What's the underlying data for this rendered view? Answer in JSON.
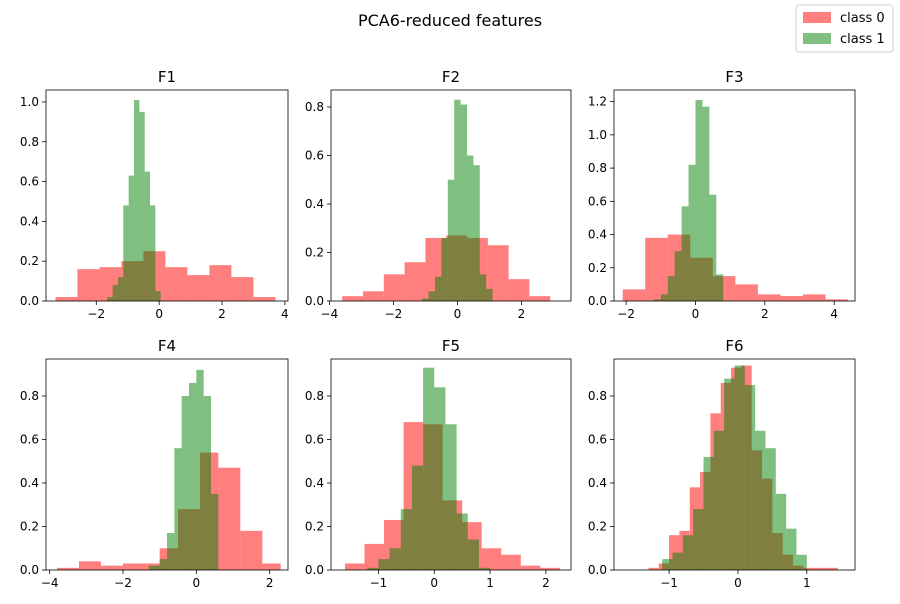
{
  "figure": {
    "title": "PCA6-reduced features",
    "legend": {
      "placement": "top-right",
      "items": [
        {
          "label": "class 0",
          "color": "#ff0000",
          "alpha": 0.5
        },
        {
          "label": "class 1",
          "color": "#008000",
          "alpha": 0.5
        }
      ]
    }
  },
  "chart_data": [
    {
      "type": "histogram",
      "title": "F1",
      "xlim": [
        -3.6,
        4.1
      ],
      "ylim": [
        0,
        1.06
      ],
      "xticks": [
        -2,
        0,
        2,
        4
      ],
      "xtick_labels": [
        "−2",
        "0",
        "2",
        "4"
      ],
      "yticks": [
        0,
        0.2,
        0.4,
        0.6,
        0.8,
        1.0
      ],
      "ytick_labels": [
        "0.0",
        "0.2",
        "0.4",
        "0.6",
        "0.8",
        "1.0"
      ],
      "series": [
        {
          "name": "class 0",
          "edges": [
            -3.3,
            -2.6,
            -1.9,
            -1.2,
            -0.5,
            0.2,
            0.9,
            1.6,
            2.3,
            3.0,
            3.7
          ],
          "values": [
            0.02,
            0.16,
            0.17,
            0.2,
            0.25,
            0.17,
            0.13,
            0.18,
            0.12,
            0.02
          ]
        },
        {
          "name": "class 1",
          "edges": [
            -1.65,
            -1.48,
            -1.31,
            -1.14,
            -0.97,
            -0.8,
            -0.63,
            -0.46,
            -0.29,
            -0.12,
            0.05
          ],
          "values": [
            0.02,
            0.08,
            0.12,
            0.48,
            0.63,
            1.01,
            0.95,
            0.65,
            0.48,
            0.05
          ]
        }
      ]
    },
    {
      "type": "histogram",
      "title": "F2",
      "xlim": [
        -3.95,
        3.55
      ],
      "ylim": [
        0,
        0.87
      ],
      "xticks": [
        -4,
        -2,
        0,
        2
      ],
      "xtick_labels": [
        "−4",
        "−2",
        "0",
        "2"
      ],
      "yticks": [
        0,
        0.2,
        0.4,
        0.6,
        0.8
      ],
      "ytick_labels": [
        "0.0",
        "0.2",
        "0.4",
        "0.6",
        "0.8"
      ],
      "series": [
        {
          "name": "class 0",
          "edges": [
            -3.6,
            -2.95,
            -2.3,
            -1.65,
            -1.0,
            -0.35,
            0.3,
            0.95,
            1.6,
            2.25,
            2.9
          ],
          "values": [
            0.02,
            0.04,
            0.11,
            0.16,
            0.26,
            0.27,
            0.26,
            0.23,
            0.09,
            0.02
          ]
        },
        {
          "name": "class 1",
          "edges": [
            -1.1,
            -0.9,
            -0.7,
            -0.5,
            -0.3,
            -0.1,
            0.1,
            0.3,
            0.5,
            0.7,
            0.9,
            1.1
          ],
          "values": [
            0.01,
            0.04,
            0.1,
            0.26,
            0.5,
            0.83,
            0.81,
            0.6,
            0.56,
            0.11,
            0.05
          ]
        }
      ]
    },
    {
      "type": "histogram",
      "title": "F3",
      "xlim": [
        -2.35,
        4.6
      ],
      "ylim": [
        0,
        1.27
      ],
      "xticks": [
        -2,
        0,
        2,
        4
      ],
      "xtick_labels": [
        "−2",
        "0",
        "2",
        "4"
      ],
      "yticks": [
        0,
        0.2,
        0.4,
        0.6,
        0.8,
        1.0,
        1.2
      ],
      "ytick_labels": [
        "0.0",
        "0.2",
        "0.4",
        "0.6",
        "0.8",
        "1.0",
        "1.2"
      ],
      "series": [
        {
          "name": "class 0",
          "edges": [
            -2.1,
            -1.45,
            -0.8,
            -0.15,
            0.5,
            1.15,
            1.8,
            2.45,
            3.1,
            3.75,
            4.4
          ],
          "values": [
            0.07,
            0.38,
            0.4,
            0.26,
            0.15,
            0.1,
            0.04,
            0.03,
            0.04,
            0.01
          ]
        },
        {
          "name": "class 1",
          "edges": [
            -1.2,
            -1.0,
            -0.8,
            -0.6,
            -0.4,
            -0.2,
            0.0,
            0.2,
            0.4,
            0.6,
            0.8
          ],
          "values": [
            0.01,
            0.04,
            0.15,
            0.3,
            0.57,
            0.82,
            1.21,
            1.17,
            0.64,
            0.16
          ]
        }
      ]
    },
    {
      "type": "histogram",
      "title": "F4",
      "xlim": [
        -4.1,
        2.5
      ],
      "ylim": [
        0,
        0.97
      ],
      "xticks": [
        -4,
        -2,
        0,
        2
      ],
      "xtick_labels": [
        "−4",
        "−2",
        "0",
        "2"
      ],
      "yticks": [
        0,
        0.2,
        0.4,
        0.6,
        0.8
      ],
      "ytick_labels": [
        "0.0",
        "0.2",
        "0.4",
        "0.6",
        "0.8"
      ],
      "series": [
        {
          "name": "class 0",
          "edges": [
            -3.8,
            -3.2,
            -2.6,
            -2.0,
            -1.4,
            -1.0,
            -0.5,
            0.1,
            0.6,
            1.2,
            1.8,
            2.3
          ],
          "values": [
            0.01,
            0.04,
            0.02,
            0.03,
            0.03,
            0.1,
            0.28,
            0.54,
            0.47,
            0.18,
            0.03
          ]
        },
        {
          "name": "class 1",
          "edges": [
            -1.3,
            -1.0,
            -0.8,
            -0.6,
            -0.4,
            -0.2,
            0.0,
            0.2,
            0.4,
            0.6
          ],
          "values": [
            0.02,
            0.05,
            0.17,
            0.56,
            0.8,
            0.86,
            0.92,
            0.8,
            0.35
          ]
        }
      ]
    },
    {
      "type": "histogram",
      "title": "F5",
      "xlim": [
        -1.85,
        2.45
      ],
      "ylim": [
        0,
        0.97
      ],
      "xticks": [
        -1,
        0,
        1,
        2
      ],
      "xtick_labels": [
        "−1",
        "0",
        "1",
        "2"
      ],
      "yticks": [
        0,
        0.2,
        0.4,
        0.6,
        0.8
      ],
      "ytick_labels": [
        "0.0",
        "0.2",
        "0.4",
        "0.6",
        "0.8"
      ],
      "series": [
        {
          "name": "class 0",
          "edges": [
            -1.6,
            -1.25,
            -0.9,
            -0.55,
            -0.2,
            0.15,
            0.5,
            0.85,
            1.2,
            1.55,
            1.9,
            2.25
          ],
          "values": [
            0.03,
            0.12,
            0.23,
            0.68,
            0.67,
            0.32,
            0.22,
            0.1,
            0.07,
            0.02,
            0.01
          ]
        },
        {
          "name": "class 1",
          "edges": [
            -1.2,
            -1.0,
            -0.8,
            -0.6,
            -0.4,
            -0.2,
            0.0,
            0.2,
            0.4,
            0.6,
            0.8,
            1.0
          ],
          "values": [
            0.01,
            0.05,
            0.1,
            0.28,
            0.48,
            0.93,
            0.84,
            0.67,
            0.26,
            0.14,
            0.01
          ]
        }
      ]
    },
    {
      "type": "histogram",
      "title": "F6",
      "xlim": [
        -1.8,
        1.7
      ],
      "ylim": [
        0,
        0.97
      ],
      "xticks": [
        -1,
        0,
        1
      ],
      "xtick_labels": [
        "−1",
        "0",
        "1"
      ],
      "yticks": [
        0,
        0.2,
        0.4,
        0.6,
        0.8
      ],
      "ytick_labels": [
        "0.0",
        "0.2",
        "0.4",
        "0.6",
        "0.8"
      ],
      "series": [
        {
          "name": "class 0",
          "edges": [
            -1.3,
            -1.15,
            -1.0,
            -0.85,
            -0.7,
            -0.55,
            -0.4,
            -0.25,
            -0.1,
            0.05,
            0.2,
            0.35,
            0.5,
            0.65,
            0.8,
            0.95,
            1.1,
            1.25,
            1.45
          ],
          "values": [
            0.01,
            0.03,
            0.16,
            0.18,
            0.38,
            0.45,
            0.72,
            0.86,
            0.93,
            0.94,
            0.55,
            0.42,
            0.17,
            0.07,
            0.02,
            0.01,
            0.01,
            0.01
          ]
        },
        {
          "name": "class 1",
          "edges": [
            -1.1,
            -0.95,
            -0.8,
            -0.65,
            -0.5,
            -0.35,
            -0.2,
            -0.05,
            0.1,
            0.25,
            0.4,
            0.55,
            0.7,
            0.85,
            1.0
          ],
          "values": [
            0.05,
            0.08,
            0.16,
            0.28,
            0.52,
            0.64,
            0.88,
            0.94,
            0.85,
            0.64,
            0.56,
            0.35,
            0.19,
            0.07
          ]
        }
      ]
    }
  ]
}
